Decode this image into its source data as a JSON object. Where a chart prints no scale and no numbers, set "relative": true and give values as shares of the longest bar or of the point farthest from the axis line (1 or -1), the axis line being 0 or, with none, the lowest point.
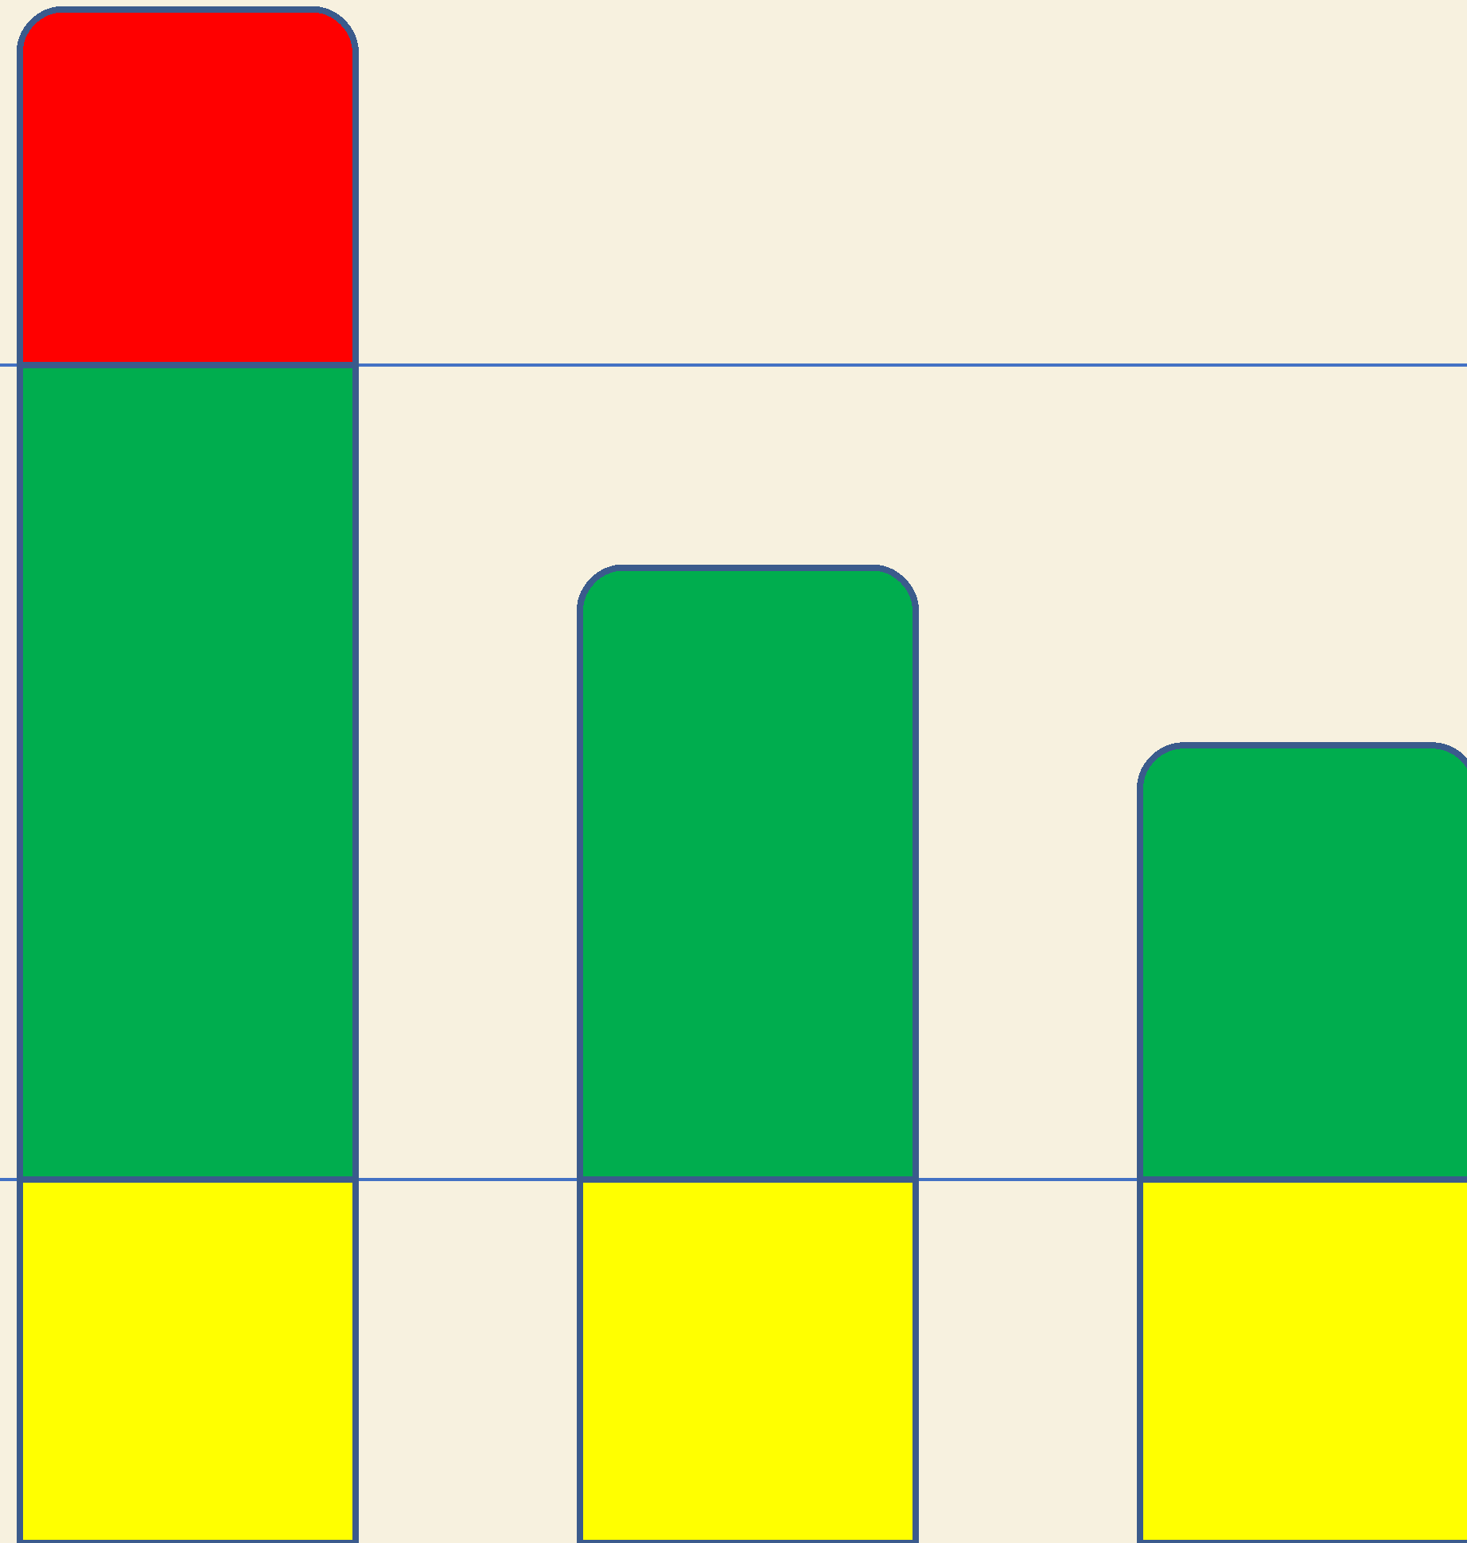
{
  "chart_data": {
    "type": "bar",
    "stacked": true,
    "relative": true,
    "categories": [
      null,
      null,
      null
    ],
    "series": [
      {
        "color": "#ffff00",
        "values": [
          0.237,
          0.237,
          0.237
        ]
      },
      {
        "color": "#00ad4e",
        "values": [
          0.531,
          0.399,
          0.283
        ]
      },
      {
        "color": "#ff0000",
        "values": [
          0.232,
          null,
          null
        ]
      }
    ],
    "ref_lines": [
      {
        "axis": "y",
        "value": 0.237,
        "color": "#4472c4"
      },
      {
        "axis": "y",
        "value": 0.768,
        "color": "#4472c4"
      }
    ],
    "grid": false
  }
}
